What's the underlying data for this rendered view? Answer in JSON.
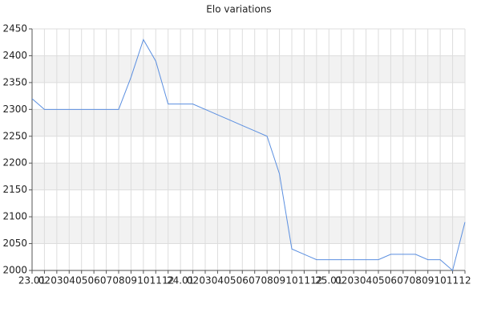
{
  "chart_data": {
    "type": "line",
    "title": "Elo variations",
    "categories": [
      "23.01",
      "02",
      "03",
      "04",
      "05",
      "06",
      "07",
      "08",
      "09",
      "10",
      "11",
      "12",
      "24.01",
      "02",
      "03",
      "04",
      "05",
      "06",
      "07",
      "08",
      "09",
      "10",
      "11",
      "12",
      "25.01",
      "02",
      "03",
      "04",
      "05",
      "06",
      "07",
      "08",
      "09",
      "10",
      "11",
      "12"
    ],
    "values": [
      2320,
      2300,
      2300,
      2300,
      2300,
      2300,
      2300,
      2300,
      2360,
      2430,
      2390,
      2310,
      2310,
      2310,
      2300,
      2290,
      2280,
      2270,
      2260,
      2250,
      2180,
      2040,
      2030,
      2020,
      2020,
      2020,
      2020,
      2020,
      2020,
      2030,
      2030,
      2030,
      2020,
      2020,
      2000,
      2090
    ],
    "color": "#5b8fe0",
    "ylim": [
      2000,
      2450
    ],
    "yticks": [
      2000,
      2050,
      2100,
      2150,
      2200,
      2250,
      2300,
      2350,
      2400,
      2450
    ],
    "grid": true,
    "bands": true
  }
}
